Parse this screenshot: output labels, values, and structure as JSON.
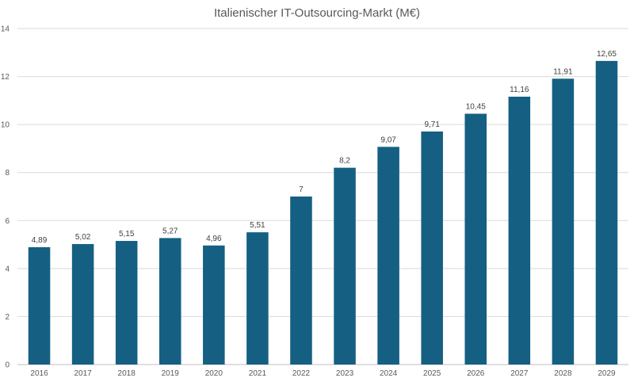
{
  "chart_data": {
    "type": "bar",
    "title": "Italienischer IT-Outsourcing-Markt (M€)",
    "xlabel": "",
    "ylabel": "",
    "categories": [
      "2016",
      "2017",
      "2018",
      "2019",
      "2020",
      "2021",
      "2022",
      "2023",
      "2024",
      "2025",
      "2026",
      "2027",
      "2028",
      "2029"
    ],
    "values": [
      4.89,
      5.02,
      5.15,
      5.27,
      4.96,
      5.51,
      7,
      8.2,
      9.07,
      9.71,
      10.45,
      11.16,
      11.91,
      12.65
    ],
    "data_labels": [
      "4,89",
      "5,02",
      "5,15",
      "5,27",
      "4,96",
      "5,51",
      "7",
      "8,2",
      "9,07",
      "9,71",
      "10,45",
      "11,16",
      "11,91",
      "12,65"
    ],
    "ylim": [
      0,
      14
    ],
    "y_ticks": [
      "0",
      "2",
      "4",
      "6",
      "8",
      "10",
      "12",
      "14"
    ],
    "grid": true,
    "legend": "none",
    "bar_color": "#156082",
    "grid_color": "#d9d9d9"
  }
}
